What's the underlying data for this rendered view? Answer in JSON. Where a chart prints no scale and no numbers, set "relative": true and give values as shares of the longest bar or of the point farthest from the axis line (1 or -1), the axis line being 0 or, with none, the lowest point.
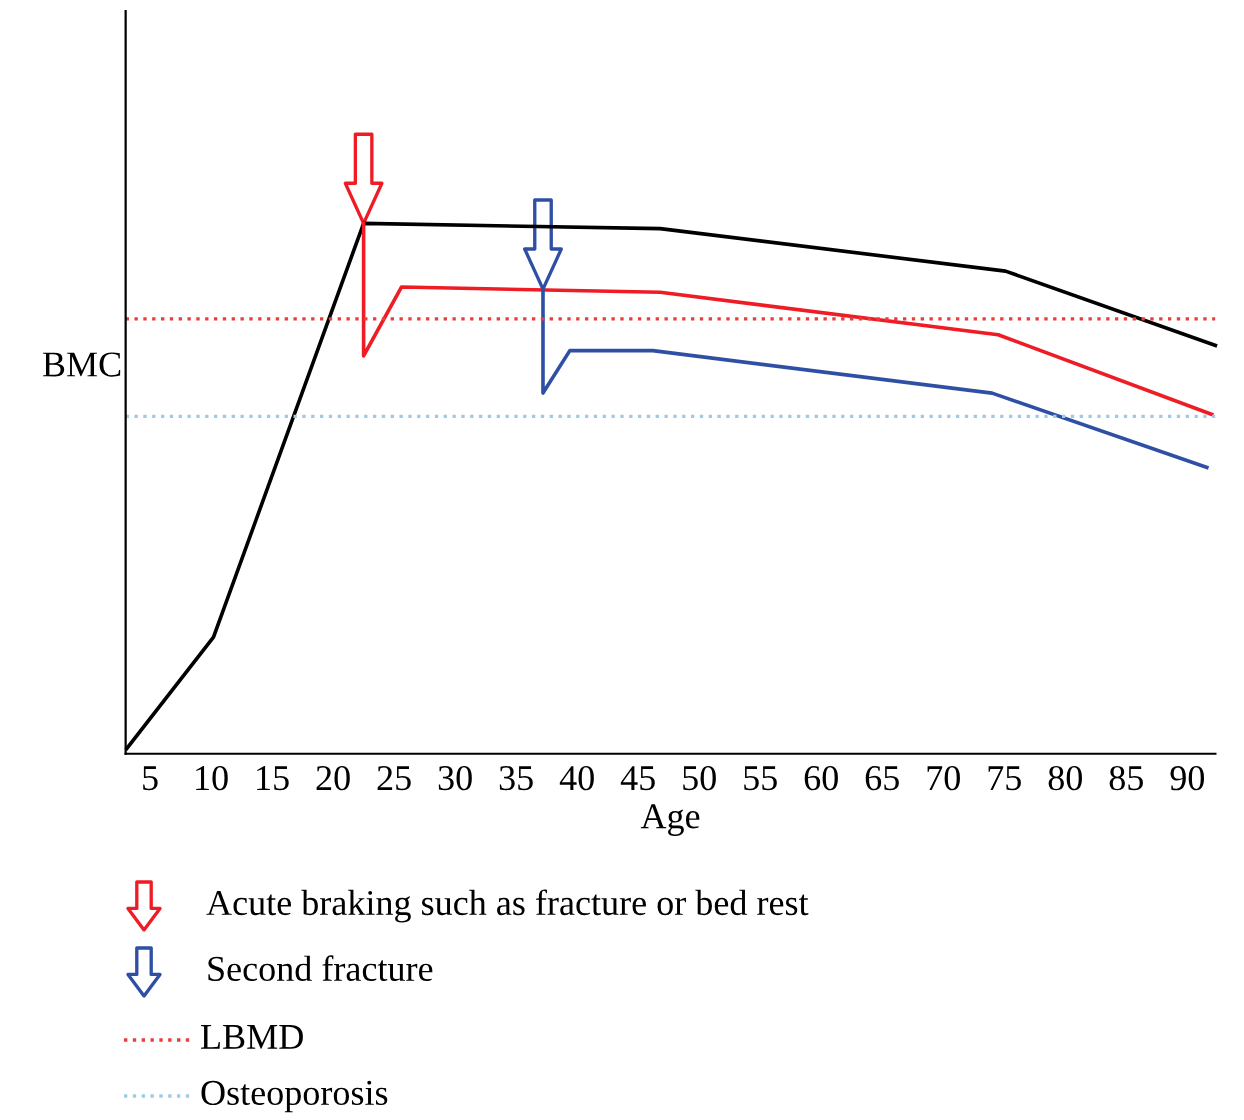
{
  "chart_data": {
    "type": "line",
    "relative": true,
    "xlabel": "Age",
    "ylabel": "BMC",
    "xlim": [
      3,
      92.3
    ],
    "xticks": [
      5,
      10,
      15,
      20,
      25,
      30,
      35,
      40,
      45,
      50,
      55,
      60,
      65,
      70,
      75,
      80,
      85,
      90
    ],
    "series": [
      {
        "color": "#000000",
        "x": [
          3.1,
          10.2,
          22.5,
          46.8,
          75.1,
          92.3
        ],
        "values": [
          0.01,
          0.22,
          1.0,
          0.99,
          0.91,
          0.77
        ]
      },
      {
        "color": "#ee1c25",
        "x": [
          22.5,
          22.5,
          25.6,
          46.8,
          74.5,
          92.0
        ],
        "values": [
          1.0,
          0.75,
          0.88,
          0.87,
          0.79,
          0.64
        ]
      },
      {
        "color": "#2e4fa3",
        "x": [
          37.2,
          37.2,
          39.4,
          46.2,
          74.0,
          91.6
        ],
        "values": [
          0.876,
          0.68,
          0.76,
          0.76,
          0.68,
          0.54
        ]
      }
    ],
    "ref_lines": [
      {
        "axis": "y",
        "value": 0.82,
        "label": "LBMD",
        "color": "#ee3b3b",
        "line_style": "dotted"
      },
      {
        "axis": "y",
        "value": 0.636,
        "label": "Osteoporosis",
        "color": "#9ccbe8",
        "line_style": "dotted"
      }
    ],
    "legend": "bottom",
    "annotations": [
      "Acute braking such as fracture or bed rest",
      "Second fracture"
    ]
  }
}
